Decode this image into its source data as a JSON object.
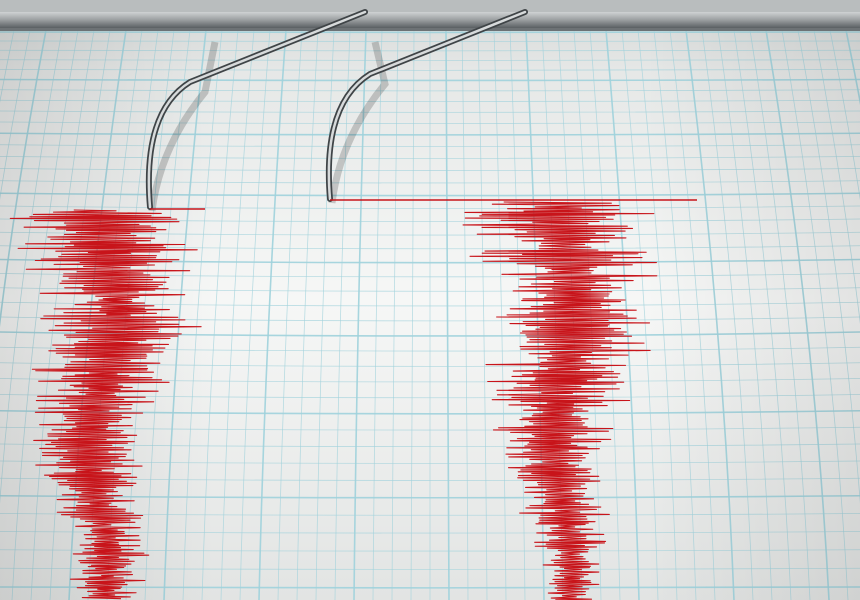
{
  "scene": {
    "subject": "seismograph",
    "colors": {
      "paper": "#f1f3f2",
      "paper_shade": "#d9dcdb",
      "grid": "#9fd2dc",
      "trace": "#c8141a",
      "metal": "#8d9194",
      "metal_dark": "#3f4447"
    },
    "needles": 2,
    "traces": 2
  }
}
